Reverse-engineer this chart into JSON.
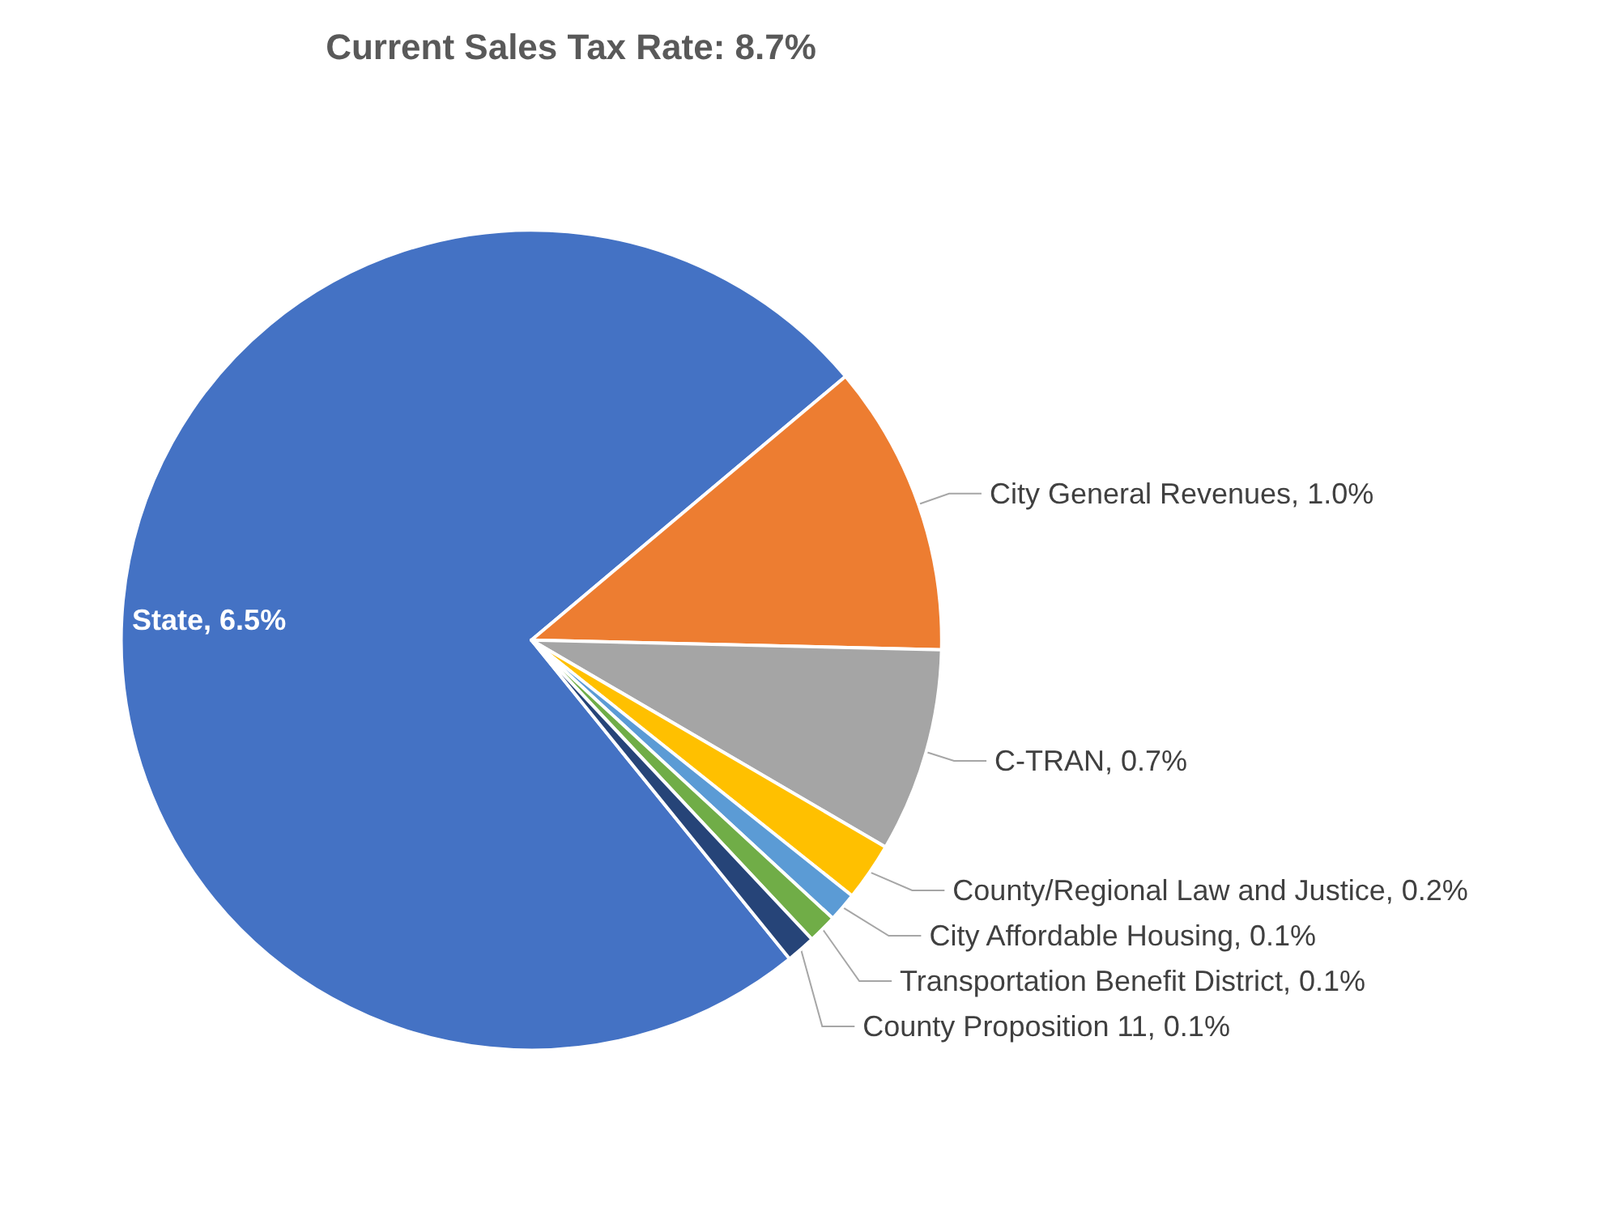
{
  "chart_data": {
    "type": "pie",
    "title": "Current Sales Tax Rate: 8.7%",
    "categories": [
      "State",
      "City General Revenues",
      "C-TRAN",
      "County/Regional Law and Justice",
      "City Affordable Housing",
      "Transportation Benefit District",
      "County Proposition 11"
    ],
    "values": [
      6.5,
      1.0,
      0.7,
      0.2,
      0.1,
      0.1,
      0.1
    ],
    "value_labels": [
      "6.5%",
      "1.0%",
      "0.7%",
      "0.2%",
      "0.1%",
      "0.1%",
      "0.1%"
    ],
    "colors": [
      "#4472c4",
      "#ed7d31",
      "#a5a5a5",
      "#ffc000",
      "#5b9bd5",
      "#70ad47",
      "#264478"
    ],
    "legend": false
  }
}
